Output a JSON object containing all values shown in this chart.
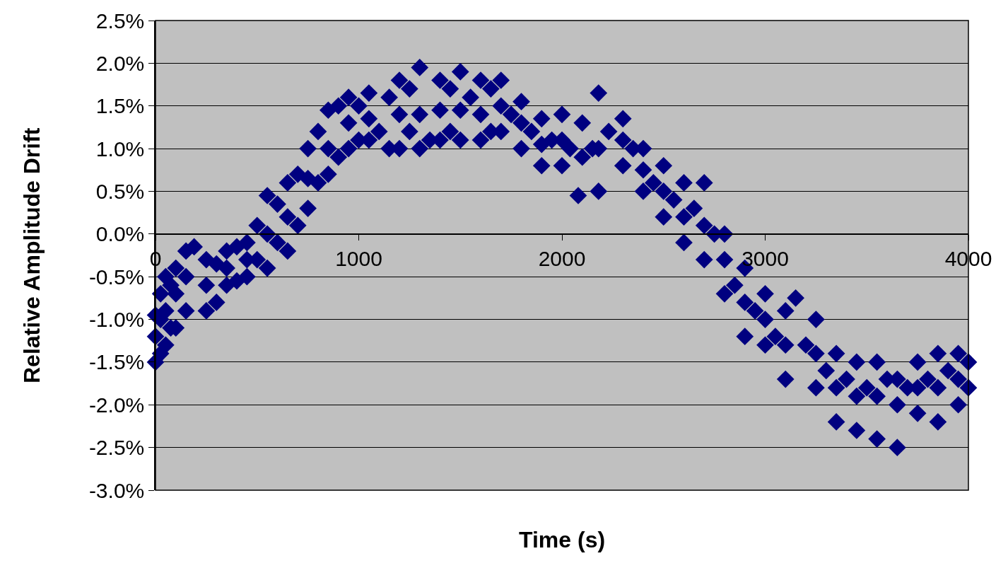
{
  "chart_data": {
    "type": "scatter",
    "xlabel": "Time (s)",
    "ylabel": "Relative Amplitude Drift",
    "xlim": [
      0,
      4000
    ],
    "xticks": [
      0,
      1000,
      2000,
      3000,
      4000
    ],
    "ylim": [
      -3.0,
      2.5
    ],
    "yticks": [
      {
        "value": -3.0,
        "label": "-3.0%"
      },
      {
        "value": -2.5,
        "label": "-2.5%"
      },
      {
        "value": -2.0,
        "label": "-2.0%"
      },
      {
        "value": -1.5,
        "label": "-1.5%"
      },
      {
        "value": -1.0,
        "label": "-1.0%"
      },
      {
        "value": -0.5,
        "label": "-0.5%"
      },
      {
        "value": 0.0,
        "label": "0.0%"
      },
      {
        "value": 0.5,
        "label": "0.5%"
      },
      {
        "value": 1.0,
        "label": "1.0%"
      },
      {
        "value": 1.5,
        "label": "1.5%"
      },
      {
        "value": 2.0,
        "label": "2.0%"
      },
      {
        "value": 2.5,
        "label": "2.5%"
      }
    ],
    "grid": "y",
    "marker": "diamond",
    "series": [
      {
        "color": "#000080",
        "x": [
          0,
          0,
          0,
          25,
          25,
          25,
          50,
          50,
          50,
          75,
          75,
          100,
          100,
          100,
          150,
          150,
          150,
          190,
          250,
          250,
          250,
          300,
          300,
          350,
          350,
          350,
          400,
          400,
          450,
          450,
          450,
          500,
          500,
          550,
          550,
          550,
          600,
          600,
          650,
          650,
          650,
          700,
          700,
          750,
          750,
          750,
          800,
          800,
          850,
          850,
          850,
          900,
          900,
          950,
          950,
          950,
          1000,
          1000,
          1050,
          1050,
          1050,
          1100,
          1150,
          1150,
          1200,
          1200,
          1200,
          1250,
          1250,
          1300,
          1300,
          1300,
          1350,
          1400,
          1400,
          1400,
          1450,
          1450,
          1500,
          1500,
          1500,
          1550,
          1600,
          1600,
          1600,
          1650,
          1650,
          1700,
          1700,
          1700,
          1750,
          1800,
          1800,
          1800,
          1850,
          1900,
          1900,
          1900,
          1950,
          2000,
          2000,
          2000,
          2040,
          2080,
          2100,
          2100,
          2150,
          2180,
          2180,
          2180,
          2230,
          2300,
          2300,
          2300,
          2350,
          2400,
          2400,
          2400,
          2450,
          2500,
          2500,
          2500,
          2550,
          2600,
          2600,
          2600,
          2650,
          2700,
          2700,
          2700,
          2750,
          2800,
          2800,
          2800,
          2850,
          2900,
          2900,
          2900,
          2950,
          3000,
          3000,
          3000,
          3050,
          3100,
          3100,
          3100,
          3150,
          3200,
          3250,
          3250,
          3250,
          3300,
          3350,
          3350,
          3350,
          3400,
          3450,
          3450,
          3450,
          3500,
          3550,
          3550,
          3550,
          3600,
          3650,
          3650,
          3650,
          3700,
          3750,
          3750,
          3750,
          3800,
          3850,
          3850,
          3850,
          3900,
          3950,
          3950,
          3950,
          4000,
          4000
        ],
        "values": [
          -1.5,
          -1.2,
          -0.95,
          -1.4,
          -1.0,
          -0.7,
          -1.3,
          -0.9,
          -0.5,
          -1.1,
          -0.6,
          -1.1,
          -0.7,
          -0.4,
          -0.9,
          -0.5,
          -0.2,
          -0.15,
          -0.9,
          -0.6,
          -0.3,
          -0.8,
          -0.35,
          -0.6,
          -0.4,
          -0.2,
          -0.55,
          -0.15,
          -0.5,
          -0.3,
          -0.1,
          -0.3,
          0.1,
          -0.4,
          0.0,
          0.45,
          -0.1,
          0.35,
          -0.2,
          0.2,
          0.6,
          0.1,
          0.7,
          0.3,
          0.65,
          1.0,
          0.6,
          1.2,
          0.7,
          1.0,
          1.45,
          0.9,
          1.5,
          1.0,
          1.3,
          1.6,
          1.1,
          1.5,
          1.1,
          1.35,
          1.65,
          1.2,
          1.0,
          1.6,
          1.0,
          1.4,
          1.8,
          1.2,
          1.7,
          1.0,
          1.4,
          1.95,
          1.1,
          1.1,
          1.45,
          1.8,
          1.2,
          1.7,
          1.1,
          1.45,
          1.9,
          1.6,
          1.1,
          1.4,
          1.8,
          1.2,
          1.7,
          1.2,
          1.5,
          1.8,
          1.4,
          1.0,
          1.3,
          1.55,
          1.2,
          0.8,
          1.05,
          1.35,
          1.1,
          0.8,
          1.1,
          1.4,
          1.0,
          0.45,
          0.9,
          1.3,
          1.0,
          0.5,
          1.0,
          1.65,
          1.2,
          0.8,
          1.1,
          1.35,
          1.0,
          0.5,
          0.75,
          1.0,
          0.6,
          0.2,
          0.5,
          0.8,
          0.4,
          -0.1,
          0.2,
          0.6,
          0.3,
          -0.3,
          0.1,
          0.6,
          0.0,
          -0.7,
          -0.3,
          0.0,
          -0.6,
          -1.2,
          -0.8,
          -0.4,
          -0.9,
          -1.3,
          -1.0,
          -0.7,
          -1.2,
          -1.7,
          -1.3,
          -0.9,
          -0.75,
          -1.3,
          -1.8,
          -1.4,
          -1.0,
          -1.6,
          -2.2,
          -1.8,
          -1.4,
          -1.7,
          -2.3,
          -1.9,
          -1.5,
          -1.8,
          -2.4,
          -1.9,
          -1.5,
          -1.7,
          -2.5,
          -2.0,
          -1.7,
          -1.8,
          -2.1,
          -1.8,
          -1.5,
          -1.7,
          -2.2,
          -1.8,
          -1.4,
          -1.6,
          -2.0,
          -1.7,
          -1.4,
          -1.8,
          -1.5
        ]
      }
    ]
  }
}
